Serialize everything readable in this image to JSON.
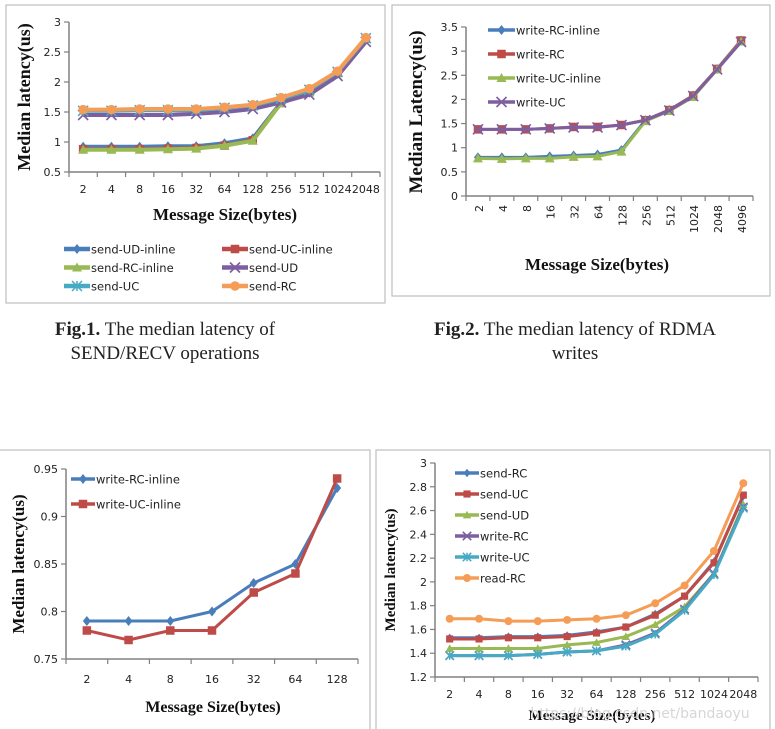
{
  "chart_data": [
    {
      "type": "line",
      "title": "",
      "xlabel": "Message Size(bytes)",
      "ylabel": "Median latency(us)",
      "ylim": [
        0.5,
        3
      ],
      "yticks": [
        "0.5",
        "1",
        "1.5",
        "2",
        "2.5",
        "3"
      ],
      "categories": [
        "2",
        "4",
        "8",
        "16",
        "32",
        "64",
        "128",
        "256",
        "512",
        "1024",
        "2048"
      ],
      "legend_position": "bottom",
      "series": [
        {
          "name": "send-UD-inline",
          "color": "#4a7ebb",
          "marker": "diamond",
          "values": [
            0.92,
            0.92,
            0.92,
            0.93,
            0.93,
            0.98,
            1.06,
            1.66,
            1.82,
            2.14,
            2.72
          ]
        },
        {
          "name": "send-UC-inline",
          "color": "#be4b48",
          "marker": "square",
          "values": [
            0.88,
            0.88,
            0.88,
            0.89,
            0.9,
            0.94,
            1.03,
            1.65,
            1.83,
            2.15,
            2.72
          ]
        },
        {
          "name": "send-RC-inline",
          "color": "#98b954",
          "marker": "triangle",
          "values": [
            0.87,
            0.87,
            0.87,
            0.88,
            0.89,
            0.94,
            1.02,
            1.65,
            1.83,
            2.15,
            2.72
          ]
        },
        {
          "name": "send-UD",
          "color": "#7d5fa0",
          "marker": "x",
          "values": [
            1.45,
            1.45,
            1.45,
            1.45,
            1.47,
            1.5,
            1.55,
            1.66,
            1.79,
            2.1,
            2.67
          ]
        },
        {
          "name": "send-UC",
          "color": "#46aac5",
          "marker": "star",
          "values": [
            1.52,
            1.52,
            1.53,
            1.53,
            1.53,
            1.57,
            1.61,
            1.72,
            1.87,
            2.17,
            2.73
          ]
        },
        {
          "name": "send-RC",
          "color": "#f59d56",
          "marker": "circle",
          "values": [
            1.54,
            1.54,
            1.55,
            1.55,
            1.55,
            1.58,
            1.62,
            1.74,
            1.89,
            2.18,
            2.74
          ]
        }
      ]
    },
    {
      "type": "line",
      "title": "",
      "xlabel": "Message Size(bytes)",
      "ylabel": "Median Latency(us)",
      "ylim": [
        0,
        3.5
      ],
      "yticks": [
        "0",
        "0.5",
        "1",
        "1.5",
        "2",
        "2.5",
        "3",
        "3.5"
      ],
      "categories": [
        "2",
        "4",
        "8",
        "16",
        "32",
        "64",
        "128",
        "256",
        "512",
        "1024",
        "2048",
        "4096"
      ],
      "xtick_rotation": "vertical",
      "legend_position": "top-left",
      "series": [
        {
          "name": "write-RC-inline",
          "color": "#4a7ebb",
          "marker": "diamond",
          "values": [
            0.8,
            0.8,
            0.8,
            0.82,
            0.84,
            0.86,
            0.95,
            1.57,
            1.78,
            2.08,
            2.63,
            3.22
          ]
        },
        {
          "name": "write-RC",
          "color": "#be4b48",
          "marker": "square",
          "values": [
            1.38,
            1.38,
            1.38,
            1.4,
            1.43,
            1.43,
            1.47,
            1.57,
            1.78,
            2.08,
            2.63,
            3.22
          ]
        },
        {
          "name": "write-UC-inline",
          "color": "#98b954",
          "marker": "triangle",
          "values": [
            0.78,
            0.77,
            0.78,
            0.78,
            0.81,
            0.82,
            0.92,
            1.55,
            1.76,
            2.05,
            2.62,
            3.2
          ]
        },
        {
          "name": "write-UC",
          "color": "#7d5fa0",
          "marker": "x",
          "values": [
            1.38,
            1.38,
            1.38,
            1.4,
            1.42,
            1.42,
            1.47,
            1.57,
            1.77,
            2.07,
            2.62,
            3.19
          ]
        }
      ]
    },
    {
      "type": "line",
      "title": "",
      "xlabel": "Message Size(bytes)",
      "ylabel": "Median latency(us)",
      "ylim": [
        0.75,
        0.95
      ],
      "yticks": [
        "0.75",
        "0.8",
        "0.85",
        "0.9",
        "0.95"
      ],
      "categories": [
        "2",
        "4",
        "8",
        "16",
        "32",
        "64",
        "128"
      ],
      "legend_position": "top-left",
      "series": [
        {
          "name": "write-RC-inline",
          "color": "#4a7ebb",
          "marker": "diamond",
          "values": [
            0.79,
            0.79,
            0.79,
            0.8,
            0.83,
            0.85,
            0.93
          ]
        },
        {
          "name": "write-UC-inline",
          "color": "#be4b48",
          "marker": "square",
          "values": [
            0.78,
            0.77,
            0.78,
            0.78,
            0.82,
            0.84,
            0.94
          ]
        }
      ]
    },
    {
      "type": "line",
      "title": "",
      "xlabel": "Message Size(bytes)",
      "ylabel": "Median latency(us)",
      "ylim": [
        1.2,
        3
      ],
      "yticks": [
        "1.2",
        "1.4",
        "1.6",
        "1.8",
        "2",
        "2.2",
        "2.4",
        "2.6",
        "2.8",
        "3"
      ],
      "categories": [
        "2",
        "4",
        "8",
        "16",
        "32",
        "64",
        "128",
        "256",
        "512",
        "1024",
        "2048"
      ],
      "legend_position": "top-left",
      "series": [
        {
          "name": "send-RC",
          "color": "#4a7ebb",
          "marker": "diamond",
          "values": [
            1.53,
            1.53,
            1.54,
            1.54,
            1.55,
            1.58,
            1.62,
            1.73,
            1.88,
            2.17,
            2.72
          ]
        },
        {
          "name": "send-UC",
          "color": "#be4b48",
          "marker": "square",
          "values": [
            1.52,
            1.52,
            1.53,
            1.53,
            1.54,
            1.57,
            1.62,
            1.72,
            1.88,
            2.16,
            2.73
          ]
        },
        {
          "name": "send-UD",
          "color": "#98b954",
          "marker": "triangle",
          "values": [
            1.44,
            1.44,
            1.44,
            1.44,
            1.47,
            1.49,
            1.54,
            1.64,
            1.79,
            2.07,
            2.65
          ]
        },
        {
          "name": "write-RC",
          "color": "#7d5fa0",
          "marker": "x",
          "values": [
            1.38,
            1.38,
            1.38,
            1.39,
            1.41,
            1.42,
            1.47,
            1.57,
            1.77,
            2.07,
            2.63
          ]
        },
        {
          "name": "write-UC",
          "color": "#46aac5",
          "marker": "star",
          "values": [
            1.38,
            1.38,
            1.38,
            1.39,
            1.41,
            1.42,
            1.46,
            1.56,
            1.76,
            2.06,
            2.62
          ]
        },
        {
          "name": "read-RC",
          "color": "#f59d56",
          "marker": "circle",
          "values": [
            1.69,
            1.69,
            1.67,
            1.67,
            1.68,
            1.69,
            1.72,
            1.82,
            1.97,
            2.26,
            2.83
          ]
        }
      ]
    }
  ],
  "captions": {
    "fig1": {
      "label": "Fig.1.",
      "line1": " The median latency of",
      "line2": "SEND/RECV operations"
    },
    "fig2": {
      "label": "Fig.2.",
      "line1": " The median latency of RDMA",
      "line2": "writes"
    }
  },
  "watermark": "https://blog.csdn.net/bandaoyu"
}
